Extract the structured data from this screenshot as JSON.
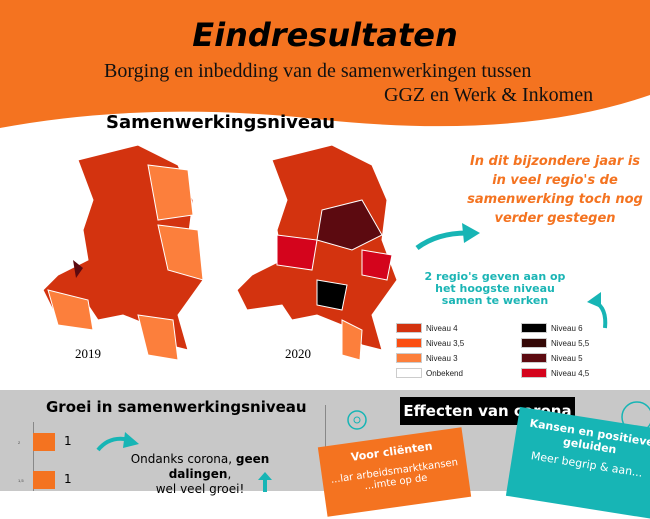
{
  "header": {
    "title": "Eindresultaten",
    "subtitle_line1": "Borging en inbedding van de samenwerkingen tussen",
    "subtitle_line2": "GGZ en Werk & Inkomen"
  },
  "maps": {
    "heading": "Samenwerkingsniveau",
    "year_left": "2019",
    "year_right": "2020"
  },
  "notes": {
    "orange": "In dit bijzondere jaar is in veel regio's de samenwerking toch nog verder gestegen",
    "teal": "2 regio's geven aan op het hoogste niveau samen te werken"
  },
  "legend": [
    {
      "label": "Niveau 4",
      "color": "#d3330f"
    },
    {
      "label": "Niveau 6",
      "color": "#000000"
    },
    {
      "label": "Niveau 3,5",
      "color": "#fb4e12"
    },
    {
      "label": "Niveau 5,5",
      "color": "#340806"
    },
    {
      "label": "Niveau 3",
      "color": "#fc7f3c"
    },
    {
      "label": "Niveau 5",
      "color": "#5c0a10"
    },
    {
      "label": "Onbekend",
      "color": "#ffffff"
    },
    {
      "label": "Niveau 4,5",
      "color": "#d4041c"
    }
  ],
  "groei": {
    "title": "Groei in samenwerkingsniveau",
    "ticks": [
      "2",
      "1,5"
    ],
    "values": [
      "1",
      "1"
    ],
    "note_pre": "Ondanks corona, ",
    "note_bold": "geen dalingen",
    "note_post": ",",
    "note_line2": "wel veel groei!"
  },
  "corona": {
    "title": "Effecten van corona",
    "card1_title": "Voor cliënten",
    "card1_text": "...lar arbeidsmarktkansen ...imte op de",
    "card2_title": "Kansen en positieve geluiden",
    "card2_text": "Meer begrip & aan..."
  },
  "colors": {
    "orange": "#f47320",
    "teal": "#17b5b5"
  }
}
